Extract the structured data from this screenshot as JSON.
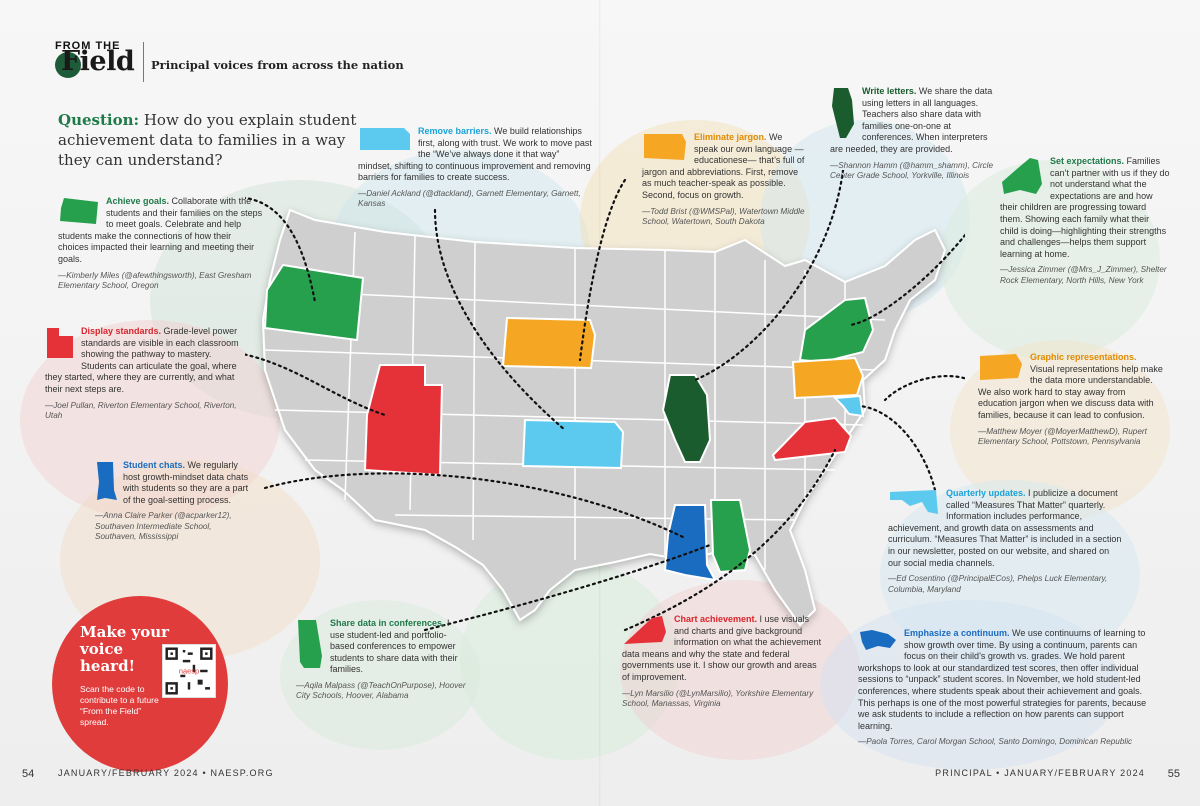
{
  "header": {
    "kicker": "FROM THE",
    "logo": "Field",
    "tagline": "Principal voices from across the nation"
  },
  "question": {
    "label": "Question:",
    "text": "How do you explain student achievement data to families in a way they can understand?"
  },
  "cards": [
    {
      "id": "oregon",
      "lead": "Achieve goals.",
      "body": " Collaborate with the students and their families on the steps to meet goals. Celebrate and help students make the connections of how their choices impacted their learning and meeting their goals.",
      "attr": "—Kimberly Miles (@afewthingsworth), East Gresham Elementary School, Oregon",
      "color": "#27a04e"
    },
    {
      "id": "utah",
      "lead": "Display standards.",
      "body": " Grade-level power standards are visible in each classroom showing the pathway to mastery. Students can articulate the goal, where they started, where they are currently, and what their next steps are.",
      "attr": "—Joel Pullan, Riverton Elementary School, Riverton, Utah",
      "color": "#e53238"
    },
    {
      "id": "mississippi",
      "lead": "Student chats.",
      "body": " We regularly host growth-mindset data chats with students so they are a part of the goal-setting process.",
      "attr": "—Anna Claire Parker (@acparker12), Southaven Intermediate School, Southaven, Mississippi",
      "color": "#1a6cc0"
    },
    {
      "id": "kansas",
      "lead": "Remove barriers.",
      "body": " We build relationships first, along with trust. We work to move past the “We’ve always done it that way” mindset, shifting to continuous improvement and removing barriers for families to create success.",
      "attr": "—Daniel Ackland (@dtackland), Garnett Elementary, Garnett, Kansas",
      "color": "#5cc9ef"
    },
    {
      "id": "southdakota",
      "lead": "Eliminate jargon.",
      "body": " We speak our own language —educationese— that’s full of jargon and abbreviations. First, remove as much teacher-speak as possible. Second, focus on growth.",
      "attr": "—Todd Brist (@WMSPal), Watertown Middle School, Watertown, South Dakota",
      "color": "#f5a623"
    },
    {
      "id": "illinois",
      "lead": "Write letters.",
      "body": " We share the data using letters in all languages. Teachers also share data with families one-on-one at conferences. When interpreters are needed, they are provided.",
      "attr": "—Shannon Hamm (@hamm_shamm), Circle Center Grade School, Yorkville, Illinois",
      "color": "#1a5c2e"
    },
    {
      "id": "newyork",
      "lead": "Set expectations.",
      "body": " Families can’t partner with us if they do not understand what the expectations are and how their children are progressing toward them. Showing each family what their child is doing—highlighting their strengths and challenges—helps them support learning at home.",
      "attr": "—Jessica Zimmer (@Mrs_J_Zimmer), Shelter Rock Elementary, North Hills, New York",
      "color": "#27a04e"
    },
    {
      "id": "pennsylvania",
      "lead": "Graphic representations.",
      "body": " Visual representations help make the data more understandable. We also work hard to stay away from education jargon when we discuss data with families, because it can lead to confusion.",
      "attr": "—Matthew Moyer (@MoyerMatthewD), Rupert Elementary School, Pottstown, Pennsylvania",
      "color": "#f5a623"
    },
    {
      "id": "maryland",
      "lead": "Quarterly updates.",
      "body": " I publicize a document called “Measures That Matter” quarterly. Information includes performance, achievement, and growth data on assessments and curriculum. “Measures That Matter” is included in a section in our newsletter, posted on our website, and shared on our social media channels.",
      "attr": "—Ed Cosentino (@PrincipalECos), Phelps Luck Elementary, Columbia, Maryland",
      "color": "#5cc9ef"
    },
    {
      "id": "alabama",
      "lead": "Share data in conferences.",
      "body": " I use student-led and portfolio-based conferences to empower students to share data with their families.",
      "attr": "—Aqila Malpass (@TeachOnPurpose), Hoover City Schools, Hoover, Alabama",
      "color": "#27a04e"
    },
    {
      "id": "virginia",
      "lead": "Chart achievement.",
      "body": " I use visuals and charts and give background information on what the achievement data means and why the state and federal governments use it. I show our growth and areas of improvement.",
      "attr": "—Lyn Marsilio (@LynMarsilio), Yorkshire Elementary School, Manassas, Virginia",
      "color": "#e53238"
    },
    {
      "id": "dominican",
      "lead": "Emphasize a continuum.",
      "body": " We use continuums of learning to show growth over time. By using a continuum, parents can focus on their child’s growth vs. grades. We hold parent workshops to look at our standardized test scores, then offer individual sessions to “unpack” student scores. In November, we hold student-led conferences, where students speak about their achievement and goals. This perhaps is one of the most powerful strategies for parents, because we ask students to include a reflection on how parents can support learning.",
      "attr": "—Paola Torres, Carol Morgan School, Santo Domingo, Dominican Republic",
      "color": "#1a6cc0"
    }
  ],
  "cta": {
    "title": "Make your voice heard!",
    "body": "Scan the code to contribute to a future “From the Field” spread.",
    "qr_label": "naesp"
  },
  "footer": {
    "left_page": "54",
    "left_text": "JANUARY/FEBRUARY 2024 • NAESP.ORG",
    "right_text": "PRINCIPAL • JANUARY/FEBRUARY 2024",
    "right_page": "55"
  }
}
